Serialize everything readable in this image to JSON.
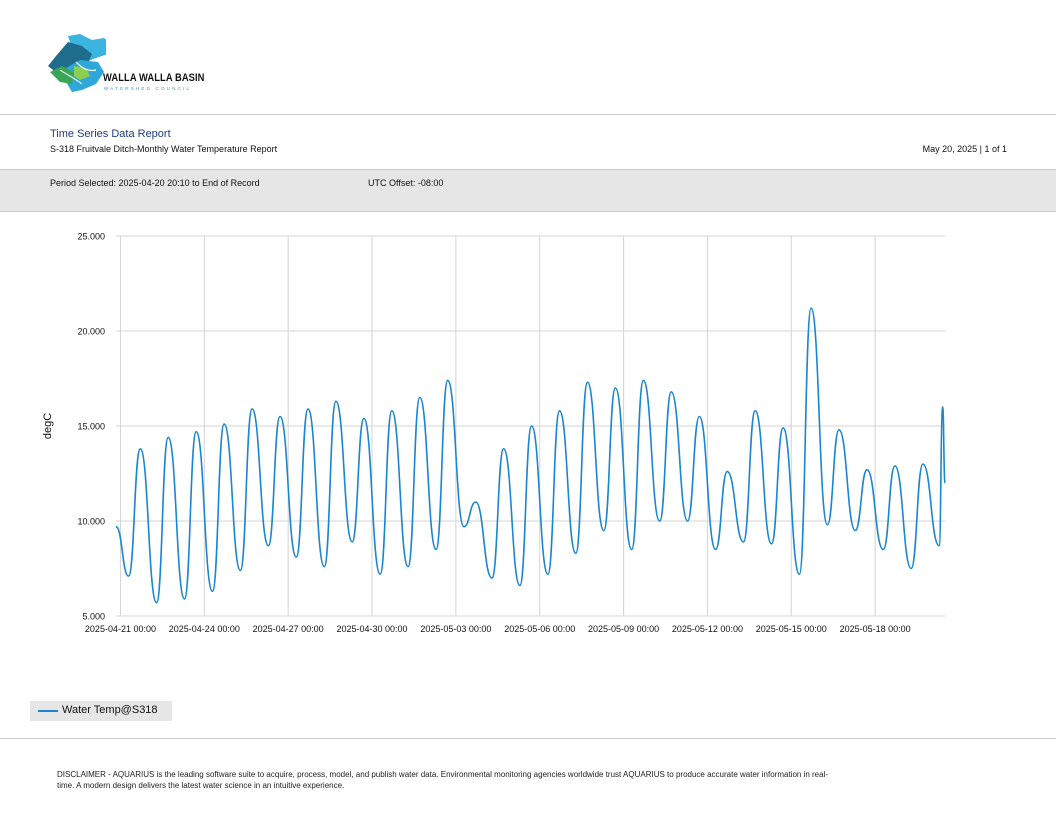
{
  "logo": {
    "title": "WALLA WALLA BASIN",
    "subtitle": "WATERSHED COUNCIL"
  },
  "report": {
    "title": "Time Series Data Report",
    "subtitle": "S-318 Fruitvale Ditch-Monthly Water Temperature Report",
    "date_page": "May 20, 2025 | 1 of 1"
  },
  "meta": {
    "period": "Period Selected: 2025-04-20 20:10 to End of Record",
    "utc": "UTC Offset: -08:00"
  },
  "colors": {
    "series": "#1a85d0",
    "grid": "#d4d4d4",
    "band": "#e6e6e6",
    "title": "#1f3d7a"
  },
  "chart_data": {
    "type": "line",
    "ylabel": "degC",
    "xlabel": "",
    "ylim": [
      5,
      25
    ],
    "yticks": [
      "5.000",
      "10.000",
      "15.000",
      "20.000",
      "25.000"
    ],
    "xlim": [
      "2025-04-20 20:10",
      "2025-05-20 12:00"
    ],
    "xticks": [
      "2025-04-21 00:00",
      "2025-04-24 00:00",
      "2025-04-27 00:00",
      "2025-04-30 00:00",
      "2025-05-03 00:00",
      "2025-05-06 00:00",
      "2025-05-09 00:00",
      "2025-05-12 00:00",
      "2025-05-15 00:00",
      "2025-05-18 00:00"
    ],
    "grid": true,
    "legend_position": "bottom-left",
    "series": [
      {
        "name": "Water Temp@S318",
        "daily_min": [
          [
            "2025-04-20 20:10",
            9.7
          ],
          [
            "2025-04-21 07:00",
            7.1
          ],
          [
            "2025-04-22 07:00",
            5.7
          ],
          [
            "2025-04-23 07:00",
            5.9
          ],
          [
            "2025-04-24 07:00",
            6.3
          ],
          [
            "2025-04-25 07:00",
            7.4
          ],
          [
            "2025-04-26 07:00",
            8.7
          ],
          [
            "2025-04-27 07:00",
            8.1
          ],
          [
            "2025-04-28 07:00",
            7.6
          ],
          [
            "2025-04-29 07:00",
            8.9
          ],
          [
            "2025-04-30 07:00",
            7.2
          ],
          [
            "2025-05-01 07:00",
            7.6
          ],
          [
            "2025-05-02 07:00",
            8.5
          ],
          [
            "2025-05-03 07:00",
            9.7
          ],
          [
            "2025-05-04 07:00",
            7.0
          ],
          [
            "2025-05-05 07:00",
            6.6
          ],
          [
            "2025-05-06 07:00",
            7.2
          ],
          [
            "2025-05-07 07:00",
            8.3
          ],
          [
            "2025-05-08 07:00",
            9.5
          ],
          [
            "2025-05-09 07:00",
            8.5
          ],
          [
            "2025-05-10 07:00",
            10.0
          ],
          [
            "2025-05-11 07:00",
            10.0
          ],
          [
            "2025-05-12 07:00",
            8.5
          ],
          [
            "2025-05-13 07:00",
            8.9
          ],
          [
            "2025-05-14 07:00",
            8.8
          ],
          [
            "2025-05-15 07:00",
            7.2
          ],
          [
            "2025-05-16 07:00",
            9.8
          ],
          [
            "2025-05-17 07:00",
            9.5
          ],
          [
            "2025-05-18 07:00",
            8.5
          ],
          [
            "2025-05-19 07:00",
            7.5
          ],
          [
            "2025-05-20 07:00",
            8.7
          ]
        ],
        "daily_max": [
          [
            "2025-04-21 17:00",
            13.8
          ],
          [
            "2025-04-22 17:00",
            14.4
          ],
          [
            "2025-04-23 17:00",
            14.7
          ],
          [
            "2025-04-24 17:00",
            15.1
          ],
          [
            "2025-04-25 17:00",
            15.9
          ],
          [
            "2025-04-26 17:00",
            15.5
          ],
          [
            "2025-04-27 17:00",
            15.9
          ],
          [
            "2025-04-28 17:00",
            16.3
          ],
          [
            "2025-04-29 17:00",
            15.4
          ],
          [
            "2025-04-30 17:00",
            15.8
          ],
          [
            "2025-05-01 17:00",
            16.5
          ],
          [
            "2025-05-02 17:00",
            17.4
          ],
          [
            "2025-05-03 17:00",
            11.0
          ],
          [
            "2025-05-04 17:00",
            13.8
          ],
          [
            "2025-05-05 17:00",
            15.0
          ],
          [
            "2025-05-06 17:00",
            15.8
          ],
          [
            "2025-05-07 17:00",
            17.3
          ],
          [
            "2025-05-08 17:00",
            17.0
          ],
          [
            "2025-05-09 17:00",
            17.4
          ],
          [
            "2025-05-10 17:00",
            16.8
          ],
          [
            "2025-05-11 17:00",
            15.5
          ],
          [
            "2025-05-12 17:00",
            12.6
          ],
          [
            "2025-05-13 17:00",
            15.8
          ],
          [
            "2025-05-14 17:00",
            14.9
          ],
          [
            "2025-05-15 17:00",
            21.2
          ],
          [
            "2025-05-16 17:00",
            14.8
          ],
          [
            "2025-05-17 17:00",
            12.7
          ],
          [
            "2025-05-18 17:00",
            12.9
          ],
          [
            "2025-05-19 17:00",
            13.0
          ],
          [
            "2025-05-20 10:00",
            16.0
          ]
        ],
        "last": [
          "2025-05-20 12:00",
          12.0
        ]
      }
    ]
  },
  "disclaimer": "DISCLAIMER - AQUARIUS is the leading software suite to acquire, process, model, and publish water data. Environmental monitoring agencies worldwide trust AQUARIUS to produce accurate water information in real-time. A modern design delivers the latest water science in an intuitive experience."
}
